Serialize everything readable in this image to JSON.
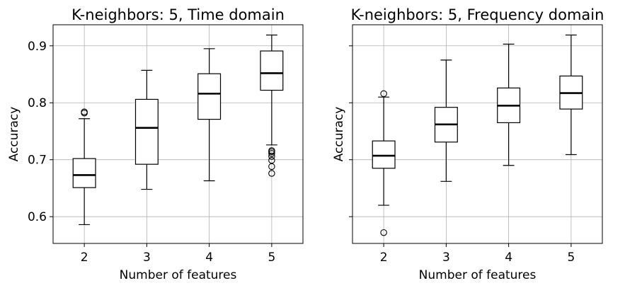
{
  "chart_data": [
    {
      "type": "box",
      "title": "K-neighbors: 5, Time domain",
      "xlabel": "Number of features",
      "ylabel": "Accuracy",
      "ylim": [
        0.553,
        0.937
      ],
      "yticks": [
        0.6,
        0.7,
        0.8,
        0.9
      ],
      "ytick_labels": [
        "0.6",
        "0.7",
        "0.8",
        "0.9"
      ],
      "show_y_tick_labels": true,
      "grid": true,
      "categories": [
        "2",
        "3",
        "4",
        "5"
      ],
      "boxes": [
        {
          "category": "2",
          "whisker_low": 0.586,
          "q1": 0.651,
          "median": 0.673,
          "q3": 0.702,
          "whisker_high": 0.772,
          "outliers": [
            0.782,
            0.784
          ]
        },
        {
          "category": "3",
          "whisker_low": 0.648,
          "q1": 0.692,
          "median": 0.756,
          "q3": 0.806,
          "whisker_high": 0.857,
          "outliers": []
        },
        {
          "category": "4",
          "whisker_low": 0.663,
          "q1": 0.771,
          "median": 0.816,
          "q3": 0.851,
          "whisker_high": 0.895,
          "outliers": []
        },
        {
          "category": "5",
          "whisker_low": 0.726,
          "q1": 0.822,
          "median": 0.852,
          "q3": 0.891,
          "whisker_high": 0.919,
          "outliers": [
            0.676,
            0.688,
            0.699,
            0.706,
            0.711,
            0.714,
            0.716
          ]
        }
      ]
    },
    {
      "type": "box",
      "title": "K-neighbors: 5, Frequency domain",
      "xlabel": "Number of features",
      "ylabel": "Accuracy",
      "ylim": [
        0.553,
        0.937
      ],
      "yticks": [
        0.6,
        0.7,
        0.8,
        0.9
      ],
      "ytick_labels": [
        "",
        "",
        "",
        ""
      ],
      "show_y_tick_labels": false,
      "grid": true,
      "categories": [
        "2",
        "3",
        "4",
        "5"
      ],
      "boxes": [
        {
          "category": "2",
          "whisker_low": 0.62,
          "q1": 0.685,
          "median": 0.707,
          "q3": 0.733,
          "whisker_high": 0.81,
          "outliers": [
            0.572,
            0.816
          ]
        },
        {
          "category": "3",
          "whisker_low": 0.662,
          "q1": 0.731,
          "median": 0.762,
          "q3": 0.792,
          "whisker_high": 0.875,
          "outliers": []
        },
        {
          "category": "4",
          "whisker_low": 0.69,
          "q1": 0.765,
          "median": 0.795,
          "q3": 0.826,
          "whisker_high": 0.903,
          "outliers": []
        },
        {
          "category": "5",
          "whisker_low": 0.709,
          "q1": 0.789,
          "median": 0.817,
          "q3": 0.847,
          "whisker_high": 0.919,
          "outliers": []
        }
      ]
    }
  ]
}
